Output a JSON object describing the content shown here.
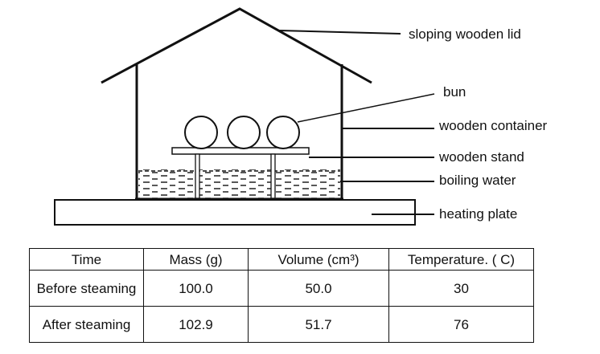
{
  "diagram": {
    "labels": {
      "lid": "sloping wooden lid",
      "bun": "bun",
      "container": "wooden container",
      "stand": "wooden stand",
      "water": "boiling water",
      "plate": "heating plate"
    }
  },
  "table": {
    "headers": [
      "Time",
      "Mass (g)",
      "Volume (cm³)",
      "Temperature. ( C)"
    ],
    "rows": [
      {
        "time": "Before steaming",
        "mass": "100.0",
        "volume": "50.0",
        "temperature": "30"
      },
      {
        "time": "After steaming",
        "mass": "102.9",
        "volume": "51.7",
        "temperature": "76"
      }
    ]
  }
}
